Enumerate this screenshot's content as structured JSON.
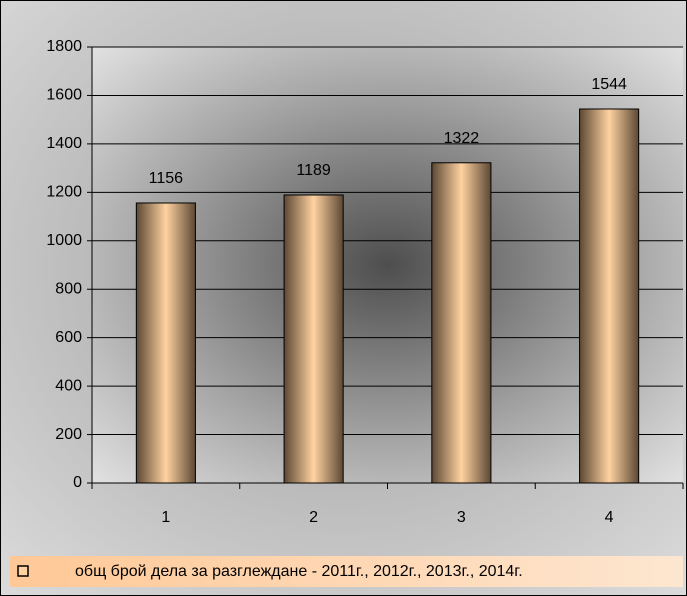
{
  "chart_data": {
    "type": "bar",
    "categories": [
      "1",
      "2",
      "3",
      "4"
    ],
    "series": [
      {
        "name": "общ  брой дела за разглеждане  -  2011г., 2012г., 2013г., 2014г.",
        "color": "#ffd2a0",
        "values": [
          1156,
          1189,
          1322,
          1544
        ]
      }
    ],
    "ylim": [
      0,
      1800
    ],
    "yticks": [
      0,
      200,
      400,
      600,
      800,
      1000,
      1200,
      1400,
      1600,
      1800
    ],
    "grid": true,
    "legend": "bottom"
  }
}
